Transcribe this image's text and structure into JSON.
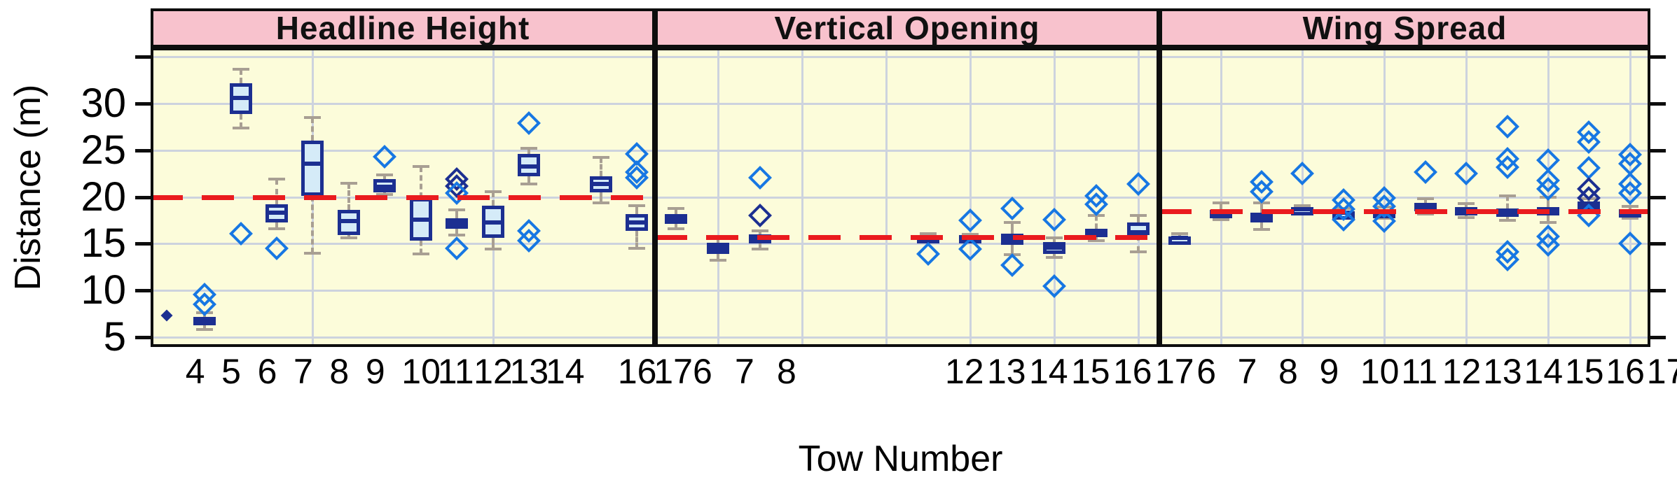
{
  "axes": {
    "y_label": "Distance (m)",
    "x_label": "Tow Number",
    "y_tick_labels": [
      "5",
      "10",
      "15",
      "20",
      "25",
      "30"
    ],
    "y_tick_values": [
      5,
      10,
      15,
      20,
      25,
      30
    ],
    "y_unlabeled_tick": 35
  },
  "colors": {
    "panel_bg": "#FCFCDA",
    "strip_pink": "#F8C2CD",
    "grid": "#CDD3DE",
    "ref_red": "#EA1B1E",
    "box_border_navy": "#1C2F91",
    "box_fill": "#D5EBF8",
    "outlier_blue": "#1777E3",
    "whisker_gray": "#A89F93",
    "border_black": "#0d0d0d"
  },
  "chart_data": {
    "type": "boxplot-lattice",
    "title": "",
    "ylabel": "Distance (m)",
    "xlabel": "Tow Number",
    "ylim": [
      4,
      36
    ],
    "y_ticks": [
      5,
      10,
      15,
      20,
      25,
      30
    ],
    "panels": [
      {
        "title": "Headline Height",
        "ref_line": 20.0,
        "slot_min": 4,
        "slot_count": 14,
        "x_tick_labels": [
          4,
          5,
          6,
          7,
          8,
          9,
          10,
          11,
          12,
          13,
          14,
          16,
          17
        ],
        "grid_x": [
          8,
          13
        ],
        "boxes": [
          {
            "tow": 4,
            "lo": null,
            "q1": 6.8,
            "med": 6.9,
            "q3": 7.0,
            "hi": null,
            "outliers": [],
            "dark": [],
            "point": true
          },
          {
            "tow": 5,
            "lo": 5.8,
            "q1": 6.3,
            "med": 6.8,
            "q3": 7.2,
            "hi": 7.6,
            "outliers": [
              9.6,
              8.5
            ],
            "dark": []
          },
          {
            "tow": 6,
            "lo": 27.4,
            "q1": 28.9,
            "med": 30.6,
            "q3": 32.2,
            "hi": 33.7,
            "outliers": [
              16.1
            ],
            "dark": []
          },
          {
            "tow": 7,
            "lo": 16.6,
            "q1": 17.3,
            "med": 18.3,
            "q3": 19.2,
            "hi": 21.9,
            "outliers": [
              14.5
            ],
            "dark": []
          },
          {
            "tow": 8,
            "lo": 14.0,
            "q1": 20.1,
            "med": 23.6,
            "q3": 26.0,
            "hi": 28.5,
            "outliers": [],
            "dark": []
          },
          {
            "tow": 9,
            "lo": 15.6,
            "q1": 15.9,
            "med": 17.4,
            "q3": 18.6,
            "hi": 21.5,
            "outliers": [],
            "dark": []
          },
          {
            "tow": 10,
            "lo": 20.3,
            "q1": 20.5,
            "med": 21.1,
            "q3": 21.9,
            "hi": 22.4,
            "outliers": [
              24.3
            ],
            "dark": []
          },
          {
            "tow": 11,
            "lo": 13.9,
            "q1": 15.3,
            "med": 17.6,
            "q3": 19.9,
            "hi": 23.3,
            "outliers": [],
            "dark": []
          },
          {
            "tow": 12,
            "lo": 15.9,
            "q1": 16.6,
            "med": 17.2,
            "q3": 17.7,
            "hi": 18.6,
            "outliers": [
              21.9,
              21.2,
              20.4,
              14.5
            ],
            "dark": [
              21.9,
              21.2
            ]
          },
          {
            "tow": 13,
            "lo": 14.4,
            "q1": 15.6,
            "med": 17.3,
            "q3": 19.1,
            "hi": 20.6,
            "outliers": [],
            "dark": []
          },
          {
            "tow": 14,
            "lo": 21.4,
            "q1": 22.2,
            "med": 23.3,
            "q3": 24.6,
            "hi": 25.2,
            "outliers": [
              27.9,
              16.4,
              15.3
            ],
            "dark": []
          },
          {
            "tow": 16,
            "lo": 19.4,
            "q1": 20.5,
            "med": 21.4,
            "q3": 22.2,
            "hi": 24.2,
            "outliers": [],
            "dark": []
          },
          {
            "tow": 17,
            "lo": 14.5,
            "q1": 16.4,
            "med": 17.3,
            "q3": 18.2,
            "hi": 19.1,
            "outliers": [
              24.6,
              22.7,
              22.1
            ],
            "dark": []
          }
        ]
      },
      {
        "title": "Vertical Opening",
        "ref_line": 15.7,
        "slot_min": 6,
        "slot_count": 12,
        "x_tick_labels": [
          6,
          7,
          8,
          12,
          13,
          14,
          15,
          16,
          17
        ],
        "grid_x": [
          7,
          9,
          11,
          13,
          15,
          17
        ],
        "boxes": [
          {
            "tow": 6,
            "lo": 16.6,
            "q1": 17.1,
            "med": 17.6,
            "q3": 18.2,
            "hi": 18.8,
            "outliers": [],
            "dark": []
          },
          {
            "tow": 7,
            "lo": 13.2,
            "q1": 13.9,
            "med": 14.5,
            "q3": 15.1,
            "hi": 15.8,
            "outliers": [],
            "dark": []
          },
          {
            "tow": 8,
            "lo": 14.4,
            "q1": 15.0,
            "med": 15.5,
            "q3": 16.0,
            "hi": 16.4,
            "outliers": [
              22.1,
              18.0
            ],
            "dark": [
              18.0
            ]
          },
          {
            "tow": 12,
            "lo": 15.3,
            "q1": 15.5,
            "med": 15.7,
            "q3": 15.9,
            "hi": 16.1,
            "outliers": [
              13.9
            ],
            "dark": []
          },
          {
            "tow": 13,
            "lo": 15.4,
            "q1": 15.5,
            "med": 15.7,
            "q3": 15.9,
            "hi": 16.0,
            "outliers": [
              17.5,
              14.4
            ],
            "dark": []
          },
          {
            "tow": 14,
            "lo": 13.8,
            "q1": 14.9,
            "med": 15.5,
            "q3": 16.1,
            "hi": 17.3,
            "outliers": [
              18.8,
              12.7
            ],
            "dark": []
          },
          {
            "tow": 15,
            "lo": 13.5,
            "q1": 13.9,
            "med": 14.6,
            "q3": 15.2,
            "hi": 15.6,
            "outliers": [
              17.6,
              10.5
            ],
            "dark": []
          },
          {
            "tow": 16,
            "lo": 15.3,
            "q1": 16.0,
            "med": 16.3,
            "q3": 16.6,
            "hi": 18.0,
            "outliers": [
              20.1,
              19.2
            ],
            "dark": []
          },
          {
            "tow": 17,
            "lo": 14.1,
            "q1": 15.9,
            "med": 16.2,
            "q3": 17.3,
            "hi": 18.0,
            "outliers": [
              21.4
            ],
            "dark": []
          }
        ]
      },
      {
        "title": "Wing Spread",
        "ref_line": 18.5,
        "slot_min": 6,
        "slot_count": 12,
        "x_tick_labels": [
          6,
          7,
          8,
          9,
          10,
          11,
          12,
          13,
          14,
          15,
          16,
          17
        ],
        "grid_x": [
          7,
          9,
          11,
          13,
          15,
          17
        ],
        "boxes": [
          {
            "tow": 6,
            "lo": 15.1,
            "q1": 15.4,
            "med": 15.6,
            "q3": 15.8,
            "hi": 16.1,
            "outliers": [],
            "dark": []
          },
          {
            "tow": 7,
            "lo": 17.6,
            "q1": 18.0,
            "med": 18.3,
            "q3": 18.6,
            "hi": 19.4,
            "outliers": [],
            "dark": []
          },
          {
            "tow": 8,
            "lo": 16.5,
            "q1": 17.3,
            "med": 17.9,
            "q3": 18.3,
            "hi": 19.4,
            "outliers": [
              21.6,
              20.6
            ],
            "dark": []
          },
          {
            "tow": 9,
            "lo": 18.3,
            "q1": 18.5,
            "med": 18.7,
            "q3": 18.9,
            "hi": 19.1,
            "outliers": [
              22.5
            ],
            "dark": []
          },
          {
            "tow": 10,
            "lo": 17.9,
            "q1": 18.1,
            "med": 18.3,
            "q3": 18.5,
            "hi": 18.8,
            "outliers": [
              19.7,
              18.7,
              17.6
            ],
            "dark": []
          },
          {
            "tow": 11,
            "lo": 17.7,
            "q1": 17.9,
            "med": 18.2,
            "q3": 18.6,
            "hi": 18.9,
            "outliers": [
              19.9,
              19.0,
              17.4
            ],
            "dark": []
          },
          {
            "tow": 12,
            "lo": 18.2,
            "q1": 18.6,
            "med": 19.0,
            "q3": 19.4,
            "hi": 19.8,
            "outliers": [
              22.7
            ],
            "dark": []
          },
          {
            "tow": 13,
            "lo": 17.8,
            "q1": 18.2,
            "med": 18.5,
            "q3": 18.9,
            "hi": 19.3,
            "outliers": [
              22.5
            ],
            "dark": []
          },
          {
            "tow": 14,
            "lo": 17.5,
            "q1": 17.9,
            "med": 18.4,
            "q3": 18.8,
            "hi": 20.1,
            "outliers": [
              27.5,
              24.1,
              23.2,
              14.1,
              13.3
            ],
            "dark": []
          },
          {
            "tow": 15,
            "lo": 17.3,
            "q1": 18.0,
            "med": 18.4,
            "q3": 18.9,
            "hi": 20.0,
            "outliers": [
              23.9,
              21.8,
              20.9,
              15.8,
              14.9
            ],
            "dark": []
          },
          {
            "tow": 16,
            "lo": 18.5,
            "q1": 18.8,
            "med": 19.1,
            "q3": 19.5,
            "hi": 19.8,
            "outliers": [
              26.9,
              25.9,
              23.1,
              20.9,
              19.9,
              18.0
            ],
            "dark": [
              20.9,
              19.9
            ]
          },
          {
            "tow": 17,
            "lo": 17.7,
            "q1": 18.1,
            "med": 18.4,
            "q3": 18.7,
            "hi": 19.0,
            "outliers": [
              24.5,
              23.6,
              21.4,
              20.4,
              15.0
            ],
            "dark": []
          }
        ]
      }
    ]
  }
}
